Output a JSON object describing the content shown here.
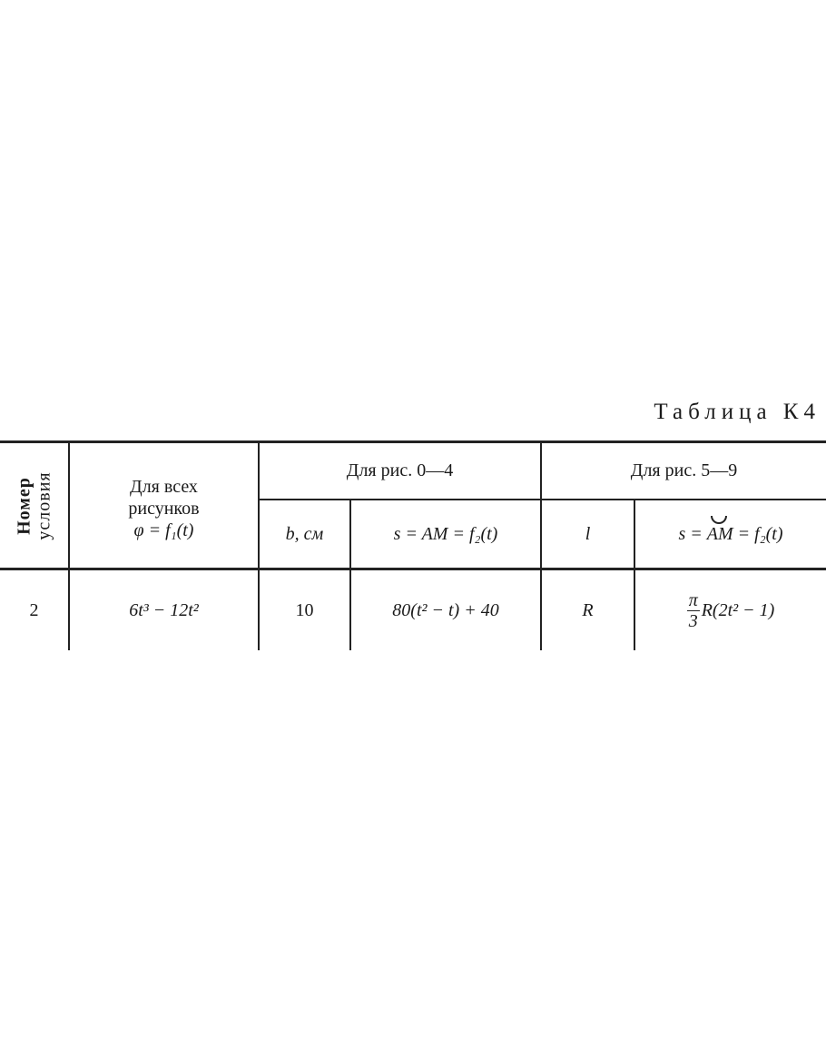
{
  "title": "Таблица К4",
  "header": {
    "condition_number": [
      "Номер",
      "условия"
    ],
    "all_figures": [
      "Для всех",
      "рисунков",
      "φ = f₁(t)"
    ],
    "group_0_4": "Для рис. 0—4",
    "group_5_9": "Для рис. 5—9",
    "b_cm": "b, см",
    "s_am_0_4": "s = AM = f₂(t)",
    "l": "l",
    "s_am_5_9": {
      "prefix": "s = ",
      "arc": "AM",
      "suffix": " = f₂(t)"
    }
  },
  "row": {
    "number": "2",
    "phi": "6t³ − 12t²",
    "b": "10",
    "s_0_4": "80(t² − t) + 40",
    "l": "R",
    "s_5_9": {
      "numerator": "π",
      "denominator": "3",
      "rest": "R(2t² − 1)"
    }
  }
}
